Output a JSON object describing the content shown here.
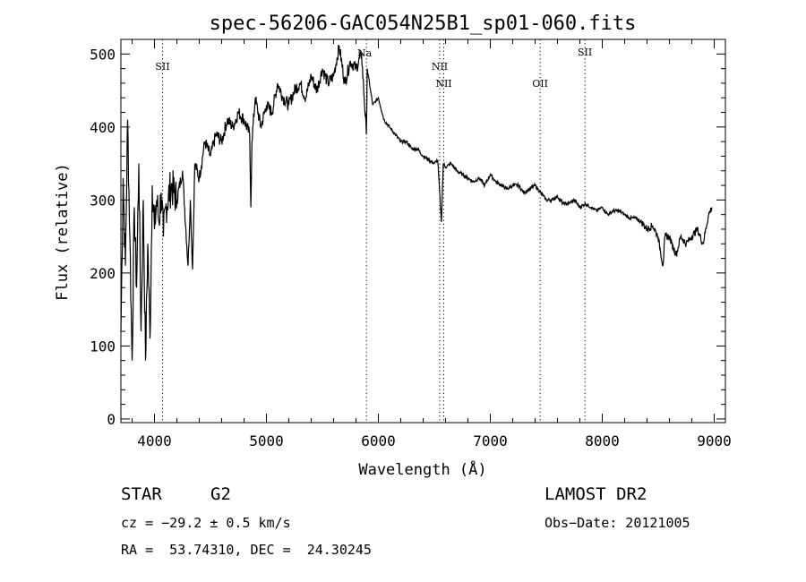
{
  "chart_data": {
    "type": "line",
    "title": "spec-56206-GAC054N25B1_sp01-060.fits",
    "xlabel": "Wavelength (Å)",
    "ylabel": "Flux (relative)",
    "xlim": [
      3700,
      9100
    ],
    "ylim": [
      -5,
      520
    ],
    "x_ticks": [
      4000,
      5000,
      6000,
      7000,
      8000,
      9000
    ],
    "y_ticks": [
      0,
      100,
      200,
      300,
      400,
      500
    ],
    "grid": false,
    "series": [
      {
        "x": [
          3700,
          3720,
          3740,
          3760,
          3780,
          3800,
          3820,
          3840,
          3860,
          3880,
          3900,
          3920,
          3940,
          3960,
          3980,
          4000,
          4020,
          4040,
          4060,
          4080,
          4100,
          4150,
          4200,
          4250,
          4300,
          4320,
          4340,
          4360,
          4400,
          4450,
          4500,
          4550,
          4600,
          4650,
          4700,
          4750,
          4800,
          4850,
          4861,
          4870,
          4900,
          4950,
          5000,
          5050,
          5100,
          5150,
          5200,
          5250,
          5300,
          5350,
          5400,
          5450,
          5500,
          5550,
          5600,
          5650,
          5700,
          5750,
          5800,
          5850,
          5893,
          5900,
          5950,
          6000,
          6050,
          6100,
          6150,
          6200,
          6250,
          6300,
          6350,
          6400,
          6450,
          6500,
          6530,
          6563,
          6580,
          6600,
          6650,
          6700,
          6750,
          6800,
          6850,
          6900,
          6950,
          7000,
          7050,
          7100,
          7150,
          7200,
          7250,
          7300,
          7350,
          7400,
          7450,
          7500,
          7550,
          7600,
          7650,
          7700,
          7750,
          7800,
          7850,
          7900,
          7950,
          8000,
          8050,
          8100,
          8150,
          8200,
          8250,
          8300,
          8350,
          8400,
          8450,
          8498,
          8520,
          8542,
          8560,
          8600,
          8620,
          8662,
          8700,
          8750,
          8800,
          8850,
          8900,
          8950,
          8980
        ],
        "y": [
          120,
          330,
          210,
          410,
          250,
          80,
          290,
          180,
          350,
          120,
          300,
          80,
          240,
          110,
          320,
          260,
          300,
          270,
          310,
          250,
          290,
          320,
          300,
          340,
          210,
          300,
          205,
          350,
          330,
          380,
          360,
          390,
          380,
          410,
          400,
          420,
          410,
          390,
          290,
          380,
          440,
          400,
          430,
          420,
          460,
          440,
          430,
          450,
          460,
          440,
          470,
          450,
          480,
          460,
          470,
          510,
          460,
          490,
          480,
          500,
          390,
          480,
          430,
          440,
          410,
          400,
          390,
          380,
          380,
          370,
          370,
          360,
          355,
          350,
          355,
          270,
          350,
          345,
          350,
          340,
          335,
          330,
          325,
          330,
          320,
          335,
          325,
          320,
          315,
          320,
          320,
          310,
          315,
          320,
          310,
          300,
          300,
          305,
          295,
          295,
          300,
          290,
          295,
          290,
          285,
          290,
          280,
          285,
          285,
          280,
          275,
          275,
          270,
          260,
          265,
          250,
          230,
          210,
          250,
          250,
          240,
          225,
          250,
          240,
          250,
          260,
          240,
          280,
          290
        ]
      }
    ],
    "lines": [
      {
        "label": "SII",
        "x": 4072
      },
      {
        "label": "Na",
        "x": 5893
      },
      {
        "label": "NII",
        "x": 6548
      },
      {
        "label": "NII",
        "x": 6584
      },
      {
        "label": "OII",
        "x": 7445
      },
      {
        "label": "SII",
        "x": 7845
      }
    ]
  },
  "info": {
    "object_class": "STAR",
    "subclass": "G2",
    "survey": "LAMOST DR2",
    "redshift": "cz = −29.2 ± 0.5 km/s",
    "obs_date": "Obs−Date: 20121005",
    "coords": "RA =  53.74310, DEC =  24.30245"
  }
}
